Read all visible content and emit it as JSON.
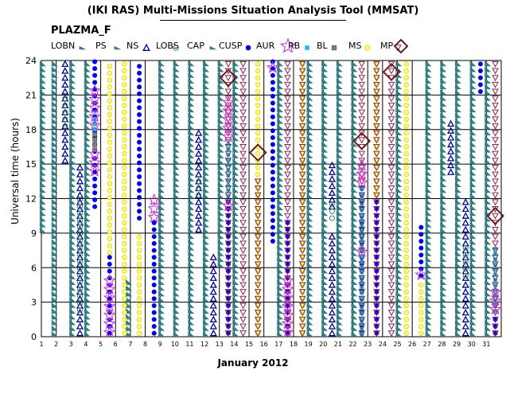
{
  "header": {
    "title": "(IKI RAS) Multi-Missions Situation Analysis Tool (MMSAT)",
    "mission": "PLAZMA_F"
  },
  "legend": [
    {
      "label": "LOBN",
      "symbol": "saw",
      "color": "#2e7f86"
    },
    {
      "label": "PS",
      "symbol": "saw",
      "color": "#2e7f86"
    },
    {
      "label": "NS",
      "symbol": "triangle-up",
      "color": "#00008b"
    },
    {
      "label": "LOBS",
      "symbol": "circle-open",
      "color": "#2e8b57"
    },
    {
      "label": "CAP",
      "symbol": "saw",
      "color": "#2e7f86"
    },
    {
      "label": "CUSP",
      "symbol": "dot",
      "color": "#0000ee"
    },
    {
      "label": "AUR",
      "symbol": "star",
      "color": "#cc33cc"
    },
    {
      "label": "RB",
      "symbol": "square",
      "color": "#00c8e0"
    },
    {
      "label": "BL",
      "symbol": "square-gray",
      "color": "#808080"
    },
    {
      "label": "MS",
      "symbol": "circle-yellow",
      "color": "#f0f000"
    },
    {
      "label": "MP",
      "symbol": "triangle-down",
      "color": "#8b2252"
    },
    {
      "label": "",
      "symbol": "diamond",
      "color": "#6b1a1a"
    }
  ],
  "chart_data": {
    "type": "scatter",
    "title": "(IKI RAS) Multi-Missions Situation Analysis Tool (MMSAT)",
    "xlabel": "January 2012",
    "ylabel": "Universal time (hours)",
    "xlim": [
      1,
      32
    ],
    "ylim": [
      0,
      24
    ],
    "x_ticks": [
      "1",
      "2",
      "3",
      "4",
      "5",
      "6",
      "7",
      "8",
      "9",
      "10",
      "11",
      "12",
      "13",
      "14",
      "15",
      "16",
      "17",
      "18",
      "19",
      "20",
      "21",
      "22",
      "23",
      "24",
      "25",
      "26",
      "27",
      "28",
      "29",
      "30",
      "31"
    ],
    "y_ticks": [
      "0",
      "3",
      "6",
      "9",
      "12",
      "15",
      "18",
      "21",
      "24"
    ],
    "grid": true,
    "series": [
      {
        "name": "PS",
        "symbol": "saw",
        "segments": [
          [
            1.1,
            9,
            24
          ],
          [
            1.9,
            0,
            24
          ],
          [
            3.1,
            0,
            24
          ],
          [
            4.1,
            0,
            24
          ],
          [
            6.9,
            0,
            5
          ],
          [
            9.1,
            0,
            24
          ],
          [
            10.1,
            0,
            24
          ],
          [
            11.1,
            0,
            24
          ],
          [
            12.1,
            0,
            24
          ],
          [
            13.1,
            6,
            24
          ],
          [
            14.1,
            0,
            24
          ],
          [
            17.1,
            0,
            24
          ],
          [
            19.1,
            0,
            24
          ],
          [
            20.1,
            0,
            24
          ],
          [
            21.1,
            0,
            24
          ],
          [
            22.1,
            0,
            24
          ],
          [
            25.1,
            0,
            24
          ],
          [
            27.1,
            0,
            24
          ],
          [
            28.1,
            0,
            24
          ],
          [
            29.1,
            0,
            24
          ],
          [
            30.1,
            0,
            24
          ],
          [
            31.1,
            0,
            24
          ]
        ]
      },
      {
        "name": "NS",
        "symbol": "triangle-up",
        "segments": [
          [
            2.6,
            15,
            24
          ],
          [
            3.6,
            0,
            15
          ],
          [
            11.6,
            9,
            18
          ],
          [
            12.6,
            0,
            7
          ],
          [
            20.6,
            11,
            15
          ],
          [
            20.6,
            0,
            9
          ],
          [
            28.6,
            14,
            19
          ],
          [
            29.6,
            0,
            12
          ]
        ]
      },
      {
        "name": "LOBS",
        "symbol": "circle-open",
        "segments": [
          [
            2.6,
            18,
            21
          ],
          [
            3.6,
            2,
            12
          ],
          [
            11.6,
            12,
            14
          ],
          [
            20.6,
            10,
            12
          ],
          [
            29.6,
            5,
            8
          ]
        ]
      },
      {
        "name": "CUSP",
        "symbol": "dot",
        "segments": [
          [
            4.6,
            11,
            24
          ],
          [
            5.6,
            0,
            7
          ],
          [
            7.6,
            10,
            24
          ],
          [
            8.6,
            0,
            10
          ],
          [
            13.6,
            0,
            12
          ],
          [
            16.6,
            8,
            24
          ],
          [
            17.6,
            0,
            10
          ],
          [
            22.6,
            0,
            13
          ],
          [
            23.6,
            0,
            12
          ],
          [
            26.6,
            5,
            10
          ],
          [
            30.6,
            21,
            24
          ],
          [
            31.6,
            0,
            2
          ]
        ]
      },
      {
        "name": "MS",
        "symbol": "circle-yellow",
        "segments": [
          [
            5.6,
            7,
            24
          ],
          [
            6.6,
            0,
            24
          ],
          [
            7.6,
            0,
            9
          ],
          [
            15.6,
            0,
            24
          ],
          [
            18.6,
            0,
            24
          ],
          [
            23.6,
            12,
            24
          ],
          [
            25.6,
            0,
            24
          ],
          [
            26.6,
            0,
            5
          ]
        ]
      },
      {
        "name": "RB",
        "symbol": "square",
        "segments": [
          [
            4.6,
            16,
            19
          ],
          [
            13.6,
            12,
            17
          ],
          [
            22.6,
            0,
            13
          ],
          [
            31.6,
            2,
            8
          ]
        ]
      },
      {
        "name": "BL",
        "symbol": "square-gray",
        "segments": [
          [
            4.6,
            16,
            18
          ]
        ]
      },
      {
        "name": "MP",
        "symbol": "triangle-down",
        "segments": [
          [
            13.6,
            0,
            24
          ],
          [
            14.6,
            0,
            24
          ],
          [
            15.6,
            0,
            14
          ],
          [
            17.6,
            0,
            24
          ],
          [
            18.6,
            0,
            24
          ],
          [
            22.6,
            0,
            24
          ],
          [
            23.6,
            0,
            24
          ],
          [
            24.6,
            0,
            24
          ],
          [
            31.6,
            0,
            24
          ]
        ]
      },
      {
        "name": "AUR",
        "symbol": "star",
        "segments": [
          [
            4.6,
            14,
            16
          ],
          [
            4.6,
            18,
            22
          ],
          [
            5.6,
            0,
            5
          ],
          [
            8.6,
            10,
            12
          ],
          [
            13.6,
            17,
            21
          ],
          [
            13.6,
            11,
            12
          ],
          [
            16.6,
            23,
            24
          ],
          [
            17.6,
            0,
            5
          ],
          [
            22.6,
            13,
            15
          ],
          [
            22.6,
            7,
            8
          ],
          [
            26.6,
            5,
            6
          ],
          [
            31.6,
            2,
            4
          ]
        ]
      },
      {
        "name": "",
        "symbol": "diamond",
        "points": [
          [
            13.6,
            22.5
          ],
          [
            15.6,
            16
          ],
          [
            22.6,
            17
          ],
          [
            24.6,
            23
          ],
          [
            31.6,
            10.5
          ]
        ]
      }
    ]
  }
}
